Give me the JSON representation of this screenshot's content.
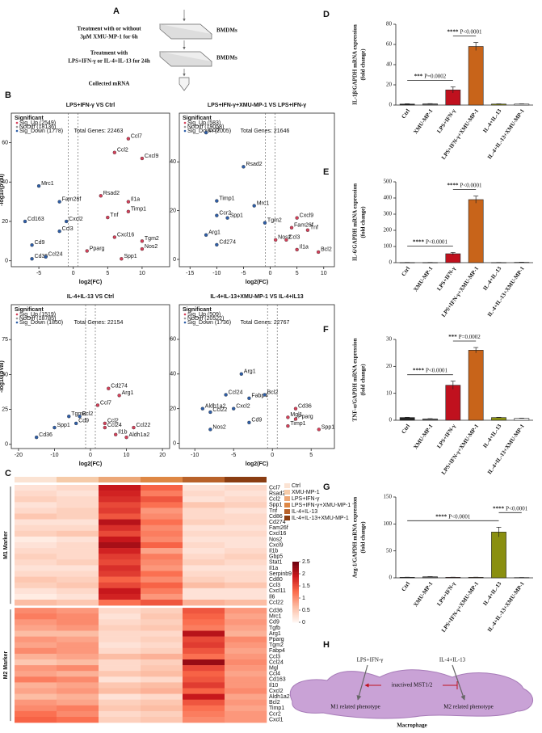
{
  "panel_labels": {
    "A": "A",
    "B": "B",
    "C": "C",
    "D": "D",
    "E": "E",
    "F": "F",
    "G": "G",
    "H": "H"
  },
  "schematic": {
    "step1": [
      "Treatment with or without",
      "3μM XMU-MP-1 for 6h"
    ],
    "cells1": "BMDMs",
    "step2": [
      "Treatment with",
      "LPS+IFN-γ or IL-4+IL-13 for 24h"
    ],
    "cells2": "BMDMs",
    "step3": "Collected mRNA"
  },
  "diagram": {
    "input1": "LPS+IFN-γ",
    "input2": "IL-4+IL-13",
    "center": "inactived MST1/2",
    "output1": "M1 related phenotype",
    "output2": "M2 related phenotype",
    "cell": "Macrophage"
  },
  "chart_data": [
    {
      "type": "scatter",
      "title": "LPS+IFN-γ VS Ctrl",
      "total": "Total Genes: 22463",
      "legend_title": "Significant",
      "legend": [
        "Sig_Up (2549)",
        "NoDiff (18136)",
        "Sig_Down (1778)"
      ],
      "up_color": "#d6405a",
      "down_color": "#2e5ea8",
      "nodiff_color": "#999999",
      "xlabel": "log2(FC)",
      "ylabel": "-log10(pVal)",
      "xlim": [
        -9,
        14
      ],
      "ylim": [
        -3,
        75
      ],
      "xticks": [
        -5,
        0,
        5,
        10
      ],
      "yticks": [
        0,
        20,
        40,
        60
      ],
      "points": {
        "labels": [
          "Ccl7",
          "Cxcl9",
          "Ccl2",
          "Mrc1",
          "Rsad2",
          "Il1a",
          "Timp1",
          "Fam26f",
          "Tnf",
          "Cd163",
          "Cxcl2",
          "Ccl3",
          "Tgm2",
          "Nos2",
          "Cd9",
          "Cxcl16",
          "Pparg",
          "Cd36",
          "Ccl24",
          "Spp1"
        ],
        "x": [
          8,
          10,
          6,
          -5,
          4,
          8,
          8,
          -2,
          5,
          -7,
          -1,
          -2,
          10,
          10,
          -6,
          6,
          2,
          -6,
          -4,
          7
        ],
        "y": [
          62,
          52,
          55,
          38,
          33,
          30,
          25,
          30,
          22,
          20,
          20,
          15,
          10,
          6,
          8,
          12,
          5,
          1,
          2,
          1
        ]
      }
    },
    {
      "type": "scatter",
      "title": "LPS+IFN-γ+XMU-MP-1 VS LPS+IFN-γ",
      "total": "Total Genes: 21646",
      "legend_title": "Significant",
      "legend": [
        "Sig_Up (583)",
        "NoDiff (19058)",
        "Sig_Down (2005)"
      ],
      "up_color": "#d6405a",
      "down_color": "#2e5ea8",
      "nodiff_color": "#999999",
      "xlabel": "log2(FC)",
      "xlim": [
        -17,
        12
      ],
      "ylim": [
        -3,
        60
      ],
      "xticks": [
        -15,
        -10,
        -5,
        0,
        5,
        10
      ],
      "yticks": [
        0,
        20,
        40
      ],
      "points": {
        "labels": [
          "Ccl7",
          "Rsad2",
          "Timp1",
          "Mrc1",
          "Ccr2",
          "Spp1",
          "Tgm2",
          "Cxcl9",
          "Fam26f",
          "Tnf",
          "Arg1",
          "Cd274",
          "Nos2",
          "Ccl3",
          "Il1a",
          "Bcl2"
        ],
        "x": [
          -12,
          -5,
          -10,
          -3,
          -10,
          -8,
          -1,
          5,
          4,
          7,
          -12,
          -10,
          1,
          3,
          5,
          9
        ],
        "y": [
          52,
          38,
          24,
          22,
          18,
          17,
          15,
          17,
          13,
          12,
          10,
          6,
          8,
          8,
          4,
          3
        ]
      }
    },
    {
      "type": "scatter",
      "title": "IL-4+IL-13 VS Ctrl",
      "total": "Total Genes: 22154",
      "legend_title": "Significant",
      "legend": [
        "Sig_Up (1519)",
        "NoDiff (18785)",
        "Sig_Down (1850)"
      ],
      "up_color": "#d6405a",
      "down_color": "#2e5ea8",
      "nodiff_color": "#999999",
      "xlabel": "log2(FC)",
      "ylabel": "-log10(pVal)",
      "xlim": [
        -22,
        22
      ],
      "ylim": [
        -3,
        100
      ],
      "xticks": [
        -20,
        -10,
        0,
        10,
        20
      ],
      "yticks": [
        0,
        25,
        50,
        75
      ],
      "points": {
        "labels": [
          "Cd274",
          "Arg1",
          "Ccl7",
          "Tgm2",
          "Bcl2",
          "Cd9",
          "Spp1",
          "Ccl2",
          "Ccl24",
          "Ccl22",
          "Cd36",
          "Il1b",
          "Aldh1a2"
        ],
        "x": [
          5,
          8,
          2,
          -6,
          -3,
          -4,
          -10,
          4,
          4,
          12,
          -15,
          7,
          10
        ],
        "y": [
          40,
          35,
          28,
          20,
          20,
          15,
          12,
          15,
          12,
          12,
          5,
          7,
          5
        ]
      }
    },
    {
      "type": "scatter",
      "title": "IL-4+IL-13+XMU-MP-1 VS IL-4+IL13",
      "total": "Total Genes: 22767",
      "legend_title": "Significant",
      "legend": [
        "Sig_Up (509)",
        "NoDiff (20522)",
        "Sig_Down (1736)"
      ],
      "up_color": "#d6405a",
      "down_color": "#2e5ea8",
      "nodiff_color": "#999999",
      "xlabel": "log2(FC)",
      "xlim": [
        -12,
        8
      ],
      "ylim": [
        -3,
        80
      ],
      "xticks": [
        -10,
        -5,
        0,
        5
      ],
      "yticks": [
        0,
        20,
        40,
        60
      ],
      "points": {
        "labels": [
          "Arg1",
          "Ccl24",
          "Fabp4",
          "Bcl2",
          "Aldh1a2",
          "Ccl22",
          "Cxcl2",
          "Cd36",
          "Pparg",
          "Mgl1",
          "Cd9",
          "Timp1",
          "Spp1",
          "Nos2"
        ],
        "x": [
          -4,
          -6,
          -3,
          -1,
          -9,
          -8,
          -5,
          3,
          3,
          2,
          -3,
          2,
          6,
          -8
        ],
        "y": [
          40,
          28,
          26,
          28,
          20,
          18,
          20,
          20,
          14,
          15,
          12,
          10,
          8,
          8
        ]
      }
    },
    {
      "type": "heatmap",
      "groups": [
        "Ctrl",
        "XMU-MP-1",
        "LPS+IFN-γ",
        "LPS+IFN-γ+XMU-MP-1",
        "IL-4+IL-13",
        "IL-4+IL-13+XMU-MP-1"
      ],
      "group_colors": [
        "#fbe3d3",
        "#f6cba9",
        "#eca777",
        "#de8744",
        "#b8622a",
        "#8a3d12"
      ],
      "colorscale": [
        "#fff5f0",
        "#fcbba1",
        "#fb6a4a",
        "#cb181d",
        "#67000d"
      ],
      "zlim": [
        0,
        2.5
      ],
      "zticks": [
        0,
        0.5,
        1,
        1.5,
        2,
        2.5
      ],
      "row_groups": [
        {
          "label": "M1 Marker",
          "rows": [
            "Ccl7",
            "Rsad2",
            "Ccl2",
            "Spp1",
            "Tnf",
            "Cd86",
            "Cd274",
            "Fam26f",
            "Cxcl16",
            "Nos2",
            "Cxcl9",
            "Il1b",
            "Gbp5",
            "Stat1",
            "Il1a",
            "Serpinb9",
            "Cd80",
            "Ccl3",
            "Cxcl11",
            "Il6",
            "Ccl22"
          ],
          "values": [
            [
              0.2,
              0.3,
              1.9,
              1.3,
              0.2,
              0.3
            ],
            [
              0.3,
              0.2,
              1.8,
              1.1,
              0.3,
              0.2
            ],
            [
              0.4,
              0.3,
              1.7,
              1.4,
              0.2,
              0.3
            ],
            [
              0.2,
              0.3,
              1.5,
              1.2,
              0.5,
              0.4
            ],
            [
              0.3,
              0.4,
              1.6,
              0.9,
              0.3,
              0.2
            ],
            [
              0.5,
              0.4,
              1.4,
              1.0,
              0.3,
              0.3
            ],
            [
              0.2,
              0.2,
              2.0,
              1.2,
              0.4,
              0.3
            ],
            [
              0.3,
              0.3,
              1.7,
              1.0,
              0.2,
              0.2
            ],
            [
              0.4,
              0.5,
              1.5,
              1.1,
              0.3,
              0.3
            ],
            [
              0.1,
              0.2,
              1.9,
              1.0,
              0.2,
              0.2
            ],
            [
              0.2,
              0.3,
              2.1,
              1.3,
              0.3,
              0.2
            ],
            [
              0.3,
              0.3,
              1.8,
              0.8,
              0.2,
              0.3
            ],
            [
              0.4,
              0.3,
              1.6,
              1.1,
              0.3,
              0.4
            ],
            [
              0.3,
              0.4,
              1.5,
              1.0,
              0.4,
              0.3
            ],
            [
              0.2,
              0.2,
              1.7,
              0.9,
              0.2,
              0.2
            ],
            [
              0.3,
              0.3,
              1.6,
              1.2,
              0.3,
              0.3
            ],
            [
              0.5,
              0.4,
              1.3,
              1.0,
              0.4,
              0.3
            ],
            [
              0.4,
              0.5,
              1.5,
              1.3,
              0.6,
              0.5
            ],
            [
              0.2,
              0.3,
              1.9,
              1.1,
              0.2,
              0.2
            ],
            [
              0.1,
              0.2,
              1.8,
              0.9,
              0.2,
              0.2
            ],
            [
              0.6,
              0.5,
              1.2,
              1.4,
              0.7,
              0.6
            ]
          ]
        },
        {
          "label": "M2 Marker",
          "rows": [
            "Cd36",
            "Mrc1",
            "Cd9",
            "Tgfb",
            "Arg1",
            "Pparg",
            "Tgm2",
            "Fabp4",
            "Ccl3",
            "Ccl24",
            "Mgl",
            "Ccl4",
            "Cd163",
            "Il10",
            "Cxcl2",
            "Aldh1a2",
            "Bcl2",
            "Timp1",
            "Ccr2",
            "Cxcl1"
          ],
          "values": [
            [
              1.0,
              0.9,
              0.3,
              0.4,
              1.4,
              0.9
            ],
            [
              1.1,
              1.0,
              0.2,
              0.5,
              1.3,
              0.8
            ],
            [
              0.9,
              1.0,
              0.3,
              0.4,
              1.2,
              0.9
            ],
            [
              0.8,
              0.9,
              0.4,
              0.5,
              1.1,
              0.8
            ],
            [
              0.6,
              0.6,
              0.3,
              0.3,
              2.0,
              0.7
            ],
            [
              0.9,
              0.8,
              0.3,
              0.4,
              1.5,
              1.0
            ],
            [
              0.8,
              0.9,
              0.2,
              0.3,
              1.6,
              0.9
            ],
            [
              1.0,
              0.9,
              0.3,
              0.4,
              1.4,
              0.8
            ],
            [
              0.7,
              0.8,
              0.6,
              0.7,
              1.2,
              0.9
            ],
            [
              0.5,
              0.6,
              0.3,
              0.4,
              2.2,
              1.0
            ],
            [
              0.9,
              1.0,
              0.3,
              0.5,
              1.5,
              0.9
            ],
            [
              0.8,
              0.7,
              0.5,
              0.6,
              1.3,
              0.8
            ],
            [
              1.1,
              1.0,
              0.2,
              0.3,
              1.4,
              0.9
            ],
            [
              0.7,
              0.8,
              0.5,
              0.6,
              1.6,
              0.9
            ],
            [
              0.8,
              0.9,
              0.6,
              0.7,
              1.3,
              1.0
            ],
            [
              0.6,
              0.7,
              0.2,
              0.3,
              1.9,
              0.8
            ],
            [
              0.9,
              0.8,
              0.4,
              0.5,
              1.4,
              0.9
            ],
            [
              1.0,
              1.1,
              0.5,
              0.6,
              1.2,
              0.8
            ],
            [
              1.2,
              1.0,
              0.3,
              0.4,
              1.1,
              0.9
            ],
            [
              1.3,
              1.2,
              0.4,
              0.5,
              1.0,
              0.9
            ]
          ]
        }
      ]
    },
    {
      "type": "bar",
      "ylabel": [
        "IL-1β/GAPDH mRNA expression",
        "(fold change)"
      ],
      "categories": [
        "Ctrl",
        "XMU-MP-1",
        "LPS+IFN-γ",
        "LPS+IFN-γ+XMU-MP-1",
        "IL-4+IL-13",
        "IL-4+IL-13+XMU-MP-1"
      ],
      "values": [
        1,
        1.2,
        15,
        58,
        1,
        1
      ],
      "errors": [
        0.3,
        0.2,
        3,
        4,
        0.2,
        0.2
      ],
      "colors": [
        "#222222",
        "#666666",
        "#c0111e",
        "#c8641a",
        "#8a8f10",
        "#ffffff"
      ],
      "ylim": [
        0,
        80
      ],
      "yticks": [
        0,
        20,
        40,
        60,
        80
      ],
      "annotations": [
        {
          "stars": "***",
          "p": "P=0.0002",
          "from": 0,
          "to": 2
        },
        {
          "stars": "****",
          "p": "P<0.0001",
          "from": 2,
          "to": 3
        }
      ]
    },
    {
      "type": "bar",
      "ylabel": [
        "IL-6/GAPDH mRNA expression",
        "(fold change)"
      ],
      "categories": [
        "Ctrl",
        "XMU-MP-1",
        "LPS+IFN-γ",
        "LPS+IFN-γ+XMU-MP-1",
        "IL-4+IL-13",
        "IL-4+IL-13+XMU-MP-1"
      ],
      "values": [
        1,
        1,
        55,
        390,
        1,
        2
      ],
      "errors": [
        0.5,
        0.5,
        8,
        22,
        0.5,
        0.8
      ],
      "colors": [
        "#222222",
        "#666666",
        "#c0111e",
        "#c8641a",
        "#8a8f10",
        "#ffffff"
      ],
      "ylim": [
        0,
        500
      ],
      "yticks": [
        0,
        100,
        200,
        300,
        400,
        500
      ],
      "annotations": [
        {
          "stars": "****",
          "p": "P<0.0001",
          "from": 0,
          "to": 2
        },
        {
          "stars": "****",
          "p": "P<0.0001",
          "from": 2,
          "to": 3
        }
      ]
    },
    {
      "type": "bar",
      "ylabel": [
        "TNF-α/GAPDH mRNA expression",
        "(fold change)"
      ],
      "categories": [
        "Ctrl",
        "XMU-MP-1",
        "LPS+IFN-γ",
        "LPS+IFN-γ+XMU-MP-1",
        "IL-4+IL-13",
        "IL-4+IL-13+XMU-MP-1"
      ],
      "values": [
        1,
        0.5,
        13,
        26,
        1,
        0.7
      ],
      "errors": [
        0.1,
        0.1,
        1.5,
        1,
        0.1,
        0.1
      ],
      "colors": [
        "#222222",
        "#666666",
        "#c0111e",
        "#c8641a",
        "#8a8f10",
        "#ffffff"
      ],
      "ylim": [
        0,
        30
      ],
      "yticks": [
        0,
        10,
        20,
        30
      ],
      "annotations": [
        {
          "stars": "****",
          "p": "P<0.0001",
          "from": 0,
          "to": 2
        },
        {
          "stars": "***",
          "p": "P=0.0002",
          "from": 2,
          "to": 3
        }
      ]
    },
    {
      "type": "bar",
      "ylabel": [
        "Arg-1/GAPDH mRNA expression",
        "(fold change)"
      ],
      "categories": [
        "Ctrl",
        "XMU-MP-1",
        "LPS+IFN-γ",
        "LPS+IFN-γ+XMU-MP-1",
        "IL-4+IL-13",
        "IL-4+IL-13+XMU-MP-1"
      ],
      "values": [
        1,
        2,
        1,
        1,
        85,
        0.5
      ],
      "errors": [
        0.2,
        0.3,
        0.2,
        0.2,
        9,
        0.1
      ],
      "colors": [
        "#222222",
        "#666666",
        "#c0111e",
        "#c8641a",
        "#8a8f10",
        "#ffffff"
      ],
      "ylim": [
        0,
        150
      ],
      "yticks": [
        0,
        50,
        100,
        150
      ],
      "annotations": [
        {
          "stars": "****",
          "p": "P<0.0001",
          "from": 0,
          "to": 4
        },
        {
          "stars": "****",
          "p": "P<0.0001",
          "from": 4,
          "to": 5
        }
      ]
    }
  ]
}
